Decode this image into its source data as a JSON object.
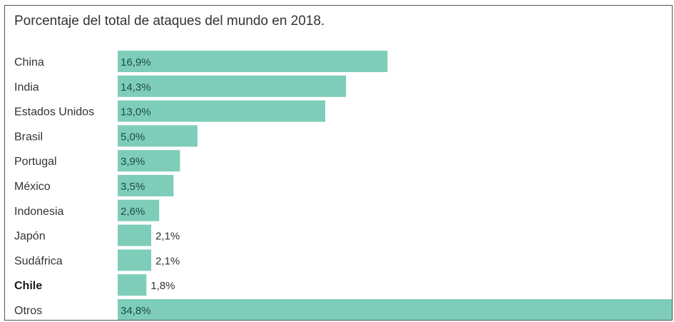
{
  "chart_data": {
    "type": "bar",
    "orientation": "horizontal",
    "title": "Porcentaje del total de ataques del mundo en 2018.",
    "categories": [
      "China",
      "India",
      "Estados Unidos",
      "Brasil",
      "Portugal",
      "México",
      "Indonesia",
      "Japón",
      "Sudáfrica",
      "Chile",
      "Otros"
    ],
    "values": [
      16.9,
      14.3,
      13.0,
      5.0,
      3.9,
      3.5,
      2.6,
      2.1,
      2.1,
      1.8,
      34.8
    ],
    "value_labels": [
      "16,9%",
      "14,3%",
      "13,0%",
      "5,0%",
      "3,9%",
      "3,5%",
      "2,6%",
      "2,1%",
      "2,1%",
      "1,8%",
      "34,8%"
    ],
    "highlight": "Chile",
    "xlim": [
      0,
      34.8
    ],
    "grid": false,
    "legend": "none",
    "colors": {
      "bar": "#7ecdb9",
      "label_inside": "#1d4c45",
      "label_outside": "#333333"
    }
  }
}
